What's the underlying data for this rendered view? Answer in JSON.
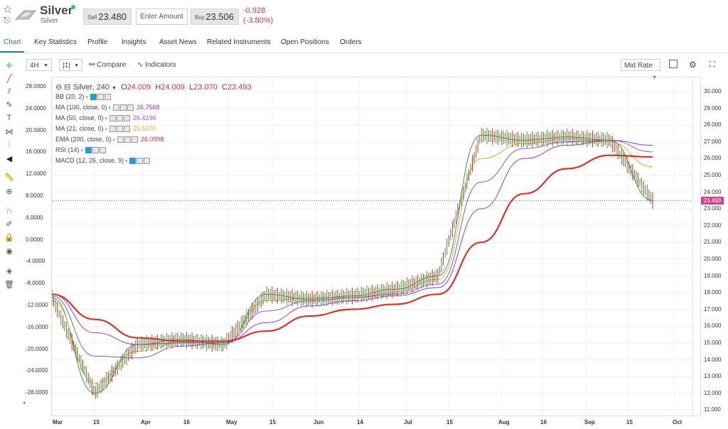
{
  "asset": {
    "title": "Silver",
    "subtitle": "Silver",
    "status_color": "#2ecc71"
  },
  "prices": {
    "sell_label": "Sell",
    "sell_value": "23.480",
    "amount_placeholder": "Enter Amount",
    "buy_label": "Buy",
    "buy_value": "23.506",
    "change_abs": "-0.928",
    "change_pct": "(-3.80%)"
  },
  "tabs": [
    "Chart",
    "Key Statistics",
    "Profile",
    "Insights",
    "Asset News",
    "Related Instruments",
    "Open Positions",
    "Orders"
  ],
  "toolbar": {
    "interval": "4H",
    "compare_label": "Compare",
    "indicators_label": "Indicators",
    "rate_mode": "Mid Rate"
  },
  "sidebar_icons": [
    "crosshair-icon",
    "line-icon",
    "multiline-icon",
    "brush-icon",
    "text-icon",
    "pattern-icon",
    "fib-icon",
    "back-icon",
    "ruler-icon",
    "zoom-icon",
    "magnet-icon",
    "pencil-lock-icon",
    "lock-icon",
    "eye-icon",
    "layers-icon",
    "trash-icon"
  ],
  "legend": {
    "symbol": "Silver, 240",
    "o_label": "O",
    "o_val": "24.009",
    "h_label": "H",
    "h_val": "24.009",
    "l_label": "L",
    "l_val": "23.070",
    "c_label": "C",
    "c_val": "23.493",
    "indicators": [
      {
        "name": "BB (20, 2)",
        "value": "",
        "color": "#444444"
      },
      {
        "name": "MA (100, close, 0)",
        "value": "26.7568",
        "color": "#8a3ec9"
      },
      {
        "name": "MA (50, close, 0)",
        "value": "26.4196",
        "color": "#7a5ad8"
      },
      {
        "name": "MA (21, close, 0)",
        "value": "25.5370",
        "color": "#e8a838"
      },
      {
        "name": "EMA (200, close, 0)",
        "value": "26.0998",
        "color": "#d9322d"
      },
      {
        "name": "RSI (14)",
        "value": "",
        "color": "#444444"
      },
      {
        "name": "MACD (12, 26, close, 9)",
        "value": "",
        "color": "#444444"
      }
    ]
  },
  "left_axis": [
    "28.0000",
    "24.0000",
    "20.0000",
    "16.0000",
    "12.0000",
    "8.0000",
    "4.0000",
    "0.0000",
    "-4.0000",
    "-8.0000",
    "-12.0000",
    "-16.0000",
    "-20.0000",
    "-24.0000",
    "-28.0000"
  ],
  "right_axis": [
    "30.000",
    "29.000",
    "28.000",
    "27.000",
    "26.000",
    "25.000",
    "24.000",
    "23.000",
    "22.000",
    "21.000",
    "20.000",
    "19.000",
    "18.000",
    "17.000",
    "16.000",
    "15.000",
    "14.000",
    "13.000",
    "12.000",
    "11.000"
  ],
  "current_price_tag": "23.493",
  "x_labels": [
    "Mar",
    "15",
    "Apr",
    "16",
    "May",
    "15",
    "Jun",
    "14",
    "Jul",
    "15",
    "Aug",
    "16",
    "Sep",
    "15",
    "Oct"
  ],
  "chart_data": {
    "type": "line",
    "title": "Silver, 240",
    "x": [
      "Mar",
      "15",
      "Apr",
      "16",
      "May",
      "15",
      "Jun",
      "14",
      "Jul",
      "15",
      "Aug",
      "16",
      "Sep",
      "15",
      "Oct"
    ],
    "ylim": [
      11,
      30
    ],
    "grid": true,
    "series": [
      {
        "name": "Silver, 240",
        "color": "#3a8a3a",
        "values": [
          17.7,
          12.0,
          14.9,
          15.2,
          14.9,
          17.9,
          17.6,
          17.8,
          18.2,
          19.0,
          27.4,
          27.1,
          27.3,
          27.1,
          23.5
        ]
      },
      {
        "name": "MA (21, close, 0)",
        "color": "#e8a838",
        "values": [
          17.5,
          12.6,
          14.5,
          15.0,
          15.0,
          17.5,
          17.7,
          17.7,
          18.0,
          18.8,
          26.0,
          26.9,
          27.2,
          27.0,
          25.5
        ]
      },
      {
        "name": "MA (50, close, 0)",
        "color": "#7a5ad8",
        "values": [
          17.8,
          14.2,
          14.1,
          14.8,
          15.0,
          16.9,
          17.5,
          17.7,
          17.9,
          18.5,
          24.6,
          26.6,
          27.0,
          27.1,
          26.4
        ]
      },
      {
        "name": "MA (100, close, 0)",
        "color": "#8a3ec9",
        "values": [
          17.9,
          15.6,
          14.9,
          15.0,
          15.0,
          16.2,
          17.2,
          17.5,
          17.8,
          18.3,
          23.0,
          26.0,
          26.8,
          27.1,
          26.8
        ]
      },
      {
        "name": "EMA (200, close, 0)",
        "color": "#d9322d",
        "values": [
          17.9,
          16.4,
          15.3,
          15.1,
          15.1,
          15.7,
          16.6,
          17.0,
          17.3,
          17.9,
          21.0,
          23.9,
          25.4,
          26.2,
          26.1
        ]
      }
    ]
  }
}
